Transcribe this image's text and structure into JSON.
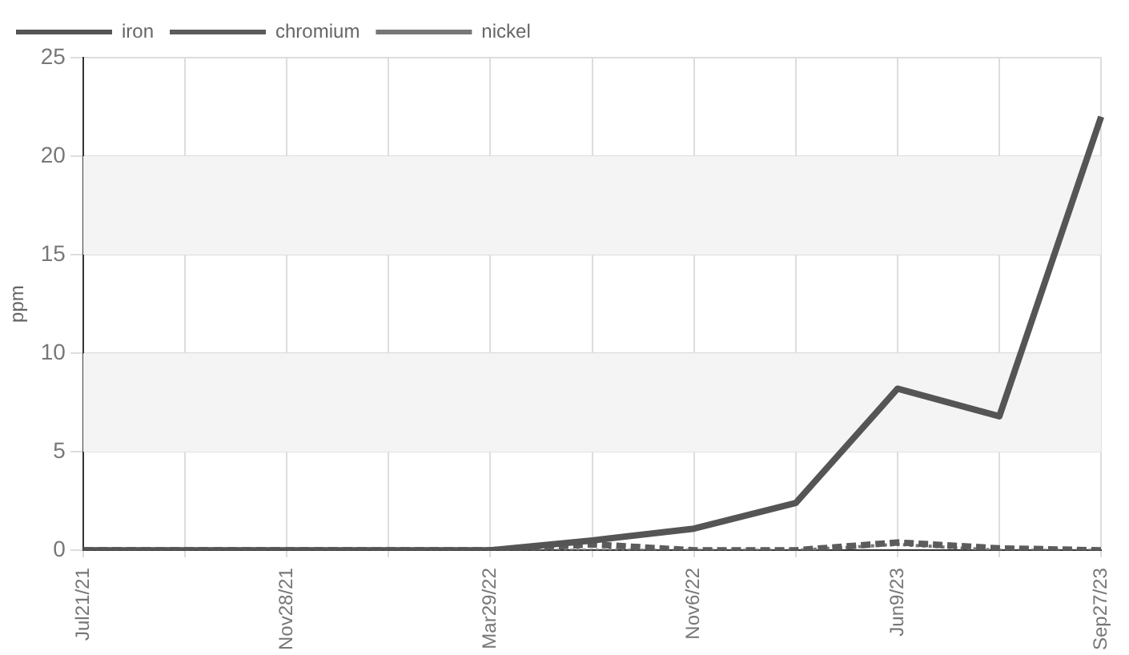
{
  "chart_data": {
    "type": "line",
    "ylabel": "ppm",
    "categories": [
      "Jul21/21",
      null,
      "Nov28/21",
      null,
      "Mar29/22",
      null,
      "Nov6/22",
      null,
      "Jun9/23",
      null,
      "Sep27/23"
    ],
    "series": [
      {
        "name": "iron",
        "color": "#555555",
        "line_style": "solid",
        "values": [
          0,
          0,
          0,
          0,
          0,
          0.5,
          1.1,
          2.4,
          8.2,
          6.8,
          22
        ]
      },
      {
        "name": "chromium",
        "color": "#5c5c5c",
        "line_style": "dashed",
        "values": [
          0,
          0,
          0,
          0,
          0,
          0.3,
          0,
          0,
          0.4,
          0.1,
          0
        ]
      },
      {
        "name": "nickel",
        "color": "#777777",
        "line_style": "dotted",
        "values": [
          0,
          0,
          0,
          0,
          0,
          0,
          0,
          0,
          0.3,
          0,
          0
        ]
      }
    ],
    "ylim": [
      0,
      25
    ],
    "yticks": [
      0,
      5,
      10,
      15,
      20,
      25
    ],
    "bands": [
      {
        "axis": "y",
        "from": 5,
        "to": 10,
        "color": "#f4f4f4"
      },
      {
        "axis": "y",
        "from": 15,
        "to": 20,
        "color": "#f4f4f4"
      }
    ],
    "grid": true,
    "legend": "top left",
    "marker": "none"
  }
}
